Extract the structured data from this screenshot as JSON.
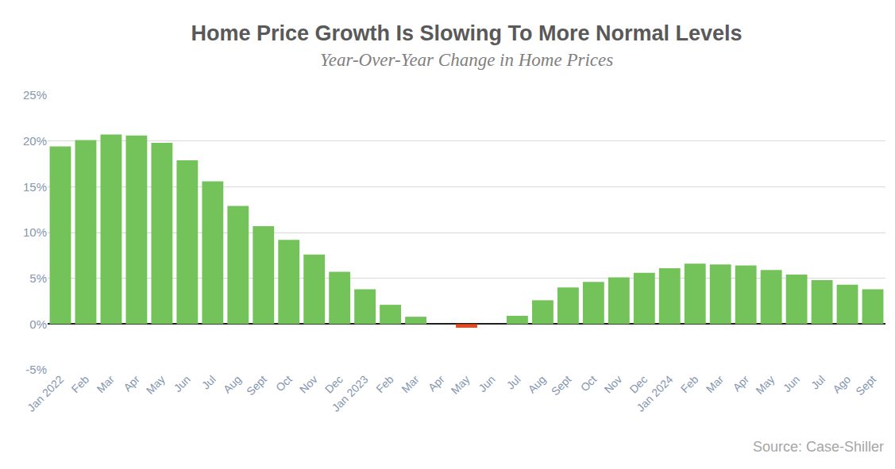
{
  "chart_data": {
    "type": "bar",
    "title": "Home Price Growth Is Slowing To More Normal Levels",
    "subtitle": "Year-Over-Year Change in Home Prices",
    "annotations": [
      "Source: Case-Shiller"
    ],
    "categories": [
      "Jan 2022",
      "Feb",
      "Mar",
      "Apr",
      "May",
      "Jun",
      "Jul",
      "Aug",
      "Sept",
      "Oct",
      "Nov",
      "Dec",
      "Jan 2023",
      "Feb",
      "Mar",
      "Apr",
      "May",
      "Jun",
      "Jul",
      "Aug",
      "Sept",
      "Oct",
      "Nov",
      "Dec",
      "Jan 2024",
      "Feb",
      "Mar",
      "Apr",
      "May",
      "Jun",
      "Jul",
      "Ago",
      "Sept"
    ],
    "values": [
      19.4,
      20.1,
      20.7,
      20.6,
      19.8,
      17.9,
      15.6,
      12.9,
      10.7,
      9.2,
      7.6,
      5.7,
      3.8,
      2.1,
      0.8,
      0.0,
      -0.4,
      0.0,
      0.9,
      2.6,
      4.0,
      4.6,
      5.1,
      5.6,
      6.1,
      6.6,
      6.5,
      6.4,
      5.9,
      5.4,
      4.8,
      4.3,
      3.8
    ],
    "colors": [
      "#74c35a",
      "#74c35a",
      "#74c35a",
      "#74c35a",
      "#74c35a",
      "#74c35a",
      "#74c35a",
      "#74c35a",
      "#74c35a",
      "#74c35a",
      "#74c35a",
      "#74c35a",
      "#74c35a",
      "#74c35a",
      "#74c35a",
      "#74c35a",
      "#e8481c",
      "#74c35a",
      "#74c35a",
      "#74c35a",
      "#74c35a",
      "#74c35a",
      "#74c35a",
      "#74c35a",
      "#74c35a",
      "#74c35a",
      "#74c35a",
      "#74c35a",
      "#74c35a",
      "#74c35a",
      "#74c35a",
      "#74c35a",
      "#74c35a"
    ],
    "ylim": [
      -5,
      25
    ],
    "yticks": [
      {
        "value": -5,
        "label": "-5%"
      },
      {
        "value": 0,
        "label": "0%"
      },
      {
        "value": 5,
        "label": "5%"
      },
      {
        "value": 10,
        "label": "10%"
      },
      {
        "value": 15,
        "label": "15%"
      },
      {
        "value": 20,
        "label": "20%"
      },
      {
        "value": 25,
        "label": "25%"
      }
    ],
    "grid": true
  }
}
